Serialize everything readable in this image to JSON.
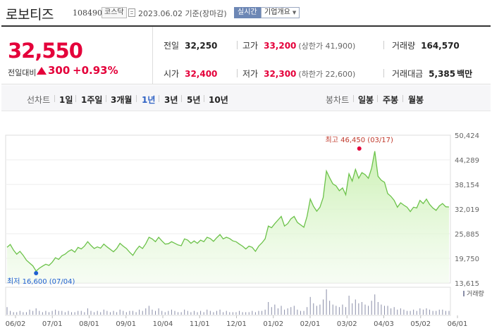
{
  "header": {
    "stock_name": "로보티즈",
    "stock_code": "108490",
    "market": "코스닥",
    "date_text": "2023.06.02 기준(장마감)",
    "realtime_label": "실시간",
    "company_info_label": "기업개요"
  },
  "price": {
    "current": "32,550",
    "change_label": "전일대비",
    "change_value": "300",
    "change_percent": "+0.93%"
  },
  "stats": {
    "prev_close": {
      "label": "전일",
      "value": "32,250"
    },
    "high": {
      "label": "고가",
      "value": "33,200",
      "sub": "(상한가 41,900)"
    },
    "volume": {
      "label": "거래량",
      "value": "164,570"
    },
    "open": {
      "label": "시가",
      "value": "32,400"
    },
    "low": {
      "label": "저가",
      "value": "32,300",
      "sub": "(하한가 22,600)"
    },
    "trade_amount": {
      "label": "거래대금",
      "value": "5,385",
      "unit": "백만"
    }
  },
  "periods": {
    "line_label": "선차트",
    "line_options": [
      "1일",
      "1주일",
      "3개월",
      "1년",
      "3년",
      "5년",
      "10년"
    ],
    "active": "1년",
    "candle_label": "봉차트",
    "candle_options": [
      "일봉",
      "주봉",
      "월봉"
    ]
  },
  "colors": {
    "up": "#e4003a",
    "line": "#6cc24a",
    "active": "#2f62c4",
    "low_marker": "#1f5fd1"
  },
  "chart_data": {
    "type": "area",
    "title": "",
    "xlabel": "",
    "ylabel": "",
    "ylim": [
      13615,
      50424
    ],
    "y_ticks": [
      "50,424",
      "44,289",
      "38,154",
      "32,019",
      "25,885",
      "19,750",
      "13,615"
    ],
    "x_ticks": [
      "06/02",
      "07/01",
      "08/01",
      "09/01",
      "10/04",
      "11/01",
      "12/01",
      "01/02",
      "02/01",
      "03/02",
      "04/03",
      "05/02",
      "06/01"
    ],
    "high_annotation": {
      "label": "최고",
      "text": "46,450 (03/17)",
      "value": 46450
    },
    "low_annotation": {
      "label": "최저",
      "text": "16,600 (07/04)",
      "value": 16600
    },
    "volume_label": "거래량",
    "series": [
      {
        "values": [
          22500,
          23200,
          21800,
          20800,
          21500,
          20500,
          19300,
          18600,
          17900,
          16600,
          17300,
          17800,
          18300,
          18000,
          18800,
          19900,
          19500,
          20400,
          20800,
          21500,
          21900,
          21300,
          22500,
          22100,
          22800,
          23900,
          23000,
          22200,
          22600,
          22300,
          23300,
          22600,
          22000,
          21400,
          22200,
          23500,
          22800,
          22200,
          21300,
          20500,
          21800,
          22800,
          22200,
          23400,
          25000,
          24600,
          23900,
          25000,
          24100,
          23300,
          23400,
          23900,
          23500,
          23100,
          22900,
          24600,
          24300,
          23500,
          24100,
          23500,
          24300,
          23900,
          25000,
          24700,
          24000,
          24900,
          25700,
          24600,
          25000,
          24700,
          24100,
          23900,
          23300,
          22800,
          22100,
          22800,
          22500,
          21500,
          22800,
          23600,
          24600,
          27800,
          27400,
          28400,
          29300,
          30200,
          27800,
          28400,
          29600,
          30200,
          28700,
          28100,
          27500,
          30200,
          34500,
          32700,
          31500,
          32500,
          34900,
          41500,
          39800,
          38300,
          37800,
          36600,
          37300,
          35600,
          40800,
          39000,
          41900,
          39700,
          41100,
          40600,
          39700,
          42200,
          46450,
          40200,
          39200,
          38700,
          35900,
          35200,
          34200,
          32500,
          33600,
          33000,
          32500,
          31400,
          32500,
          32300,
          34200,
          33400,
          34500,
          33200,
          32300,
          31700,
          32800,
          33400,
          32600,
          32550
        ],
        "volumes": [
          6,
          3,
          2,
          2,
          3,
          2,
          2,
          4,
          3,
          5,
          3,
          2,
          3,
          2,
          3,
          4,
          3,
          3,
          2,
          3,
          2,
          2,
          3,
          3,
          2,
          5,
          3,
          2,
          3,
          2,
          4,
          3,
          2,
          3,
          2,
          4,
          3,
          2,
          3,
          3,
          2,
          4,
          3,
          5,
          7,
          4,
          3,
          5,
          3,
          2,
          3,
          4,
          3,
          2,
          2,
          4,
          3,
          2,
          3,
          2,
          3,
          2,
          4,
          3,
          2,
          3,
          4,
          2,
          3,
          2,
          2,
          2,
          3,
          2,
          2,
          2,
          3,
          2,
          3,
          3,
          4,
          10,
          6,
          8,
          5,
          7,
          4,
          5,
          6,
          7,
          4,
          3,
          3,
          6,
          14,
          9,
          7,
          8,
          12,
          20,
          11,
          8,
          7,
          6,
          8,
          6,
          15,
          9,
          12,
          9,
          10,
          8,
          7,
          11,
          16,
          10,
          8,
          7,
          7,
          5,
          6,
          4,
          5,
          4,
          3,
          3,
          4,
          3,
          5,
          4,
          5,
          4,
          3,
          3,
          4,
          4,
          3,
          3
        ]
      }
    ]
  }
}
